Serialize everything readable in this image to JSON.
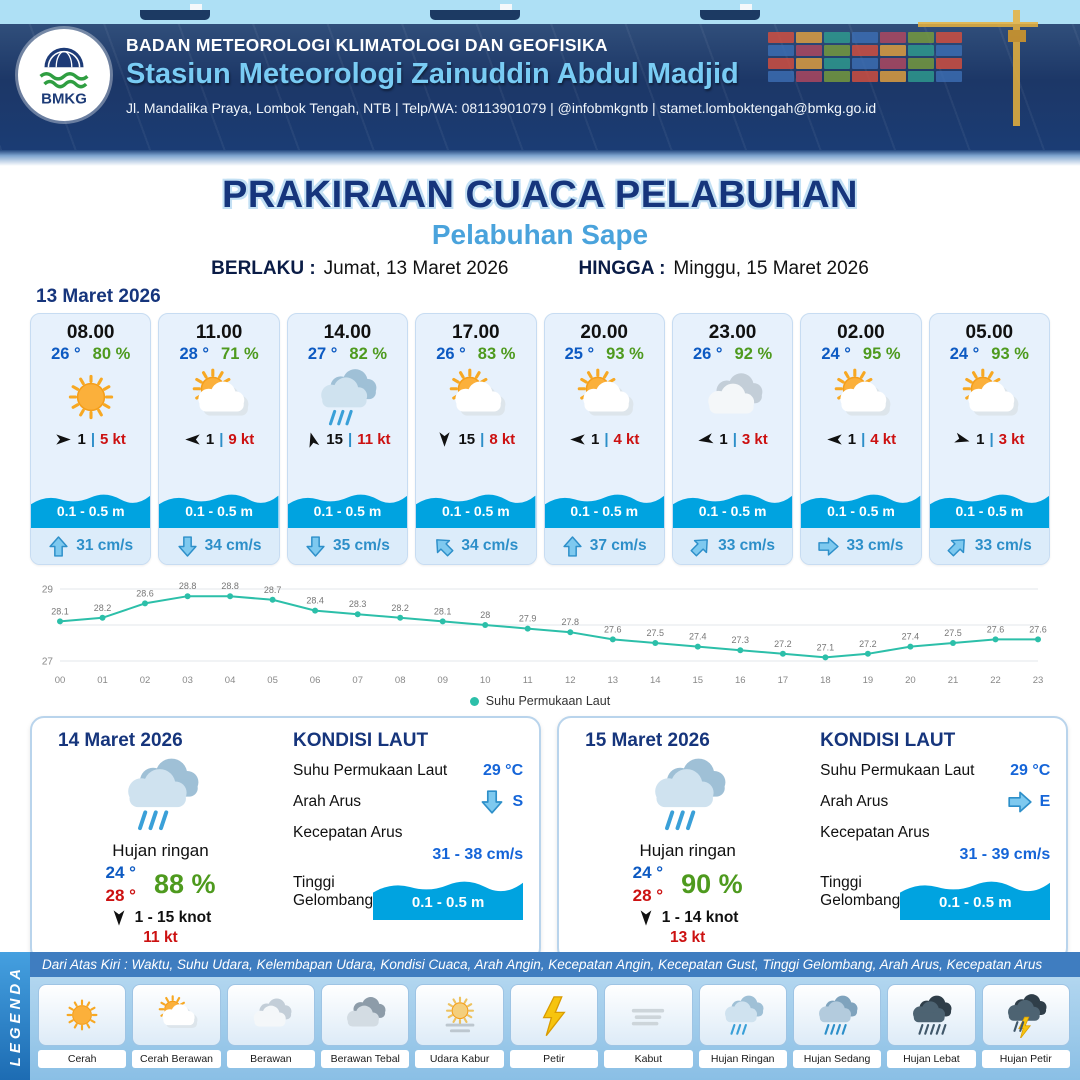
{
  "colors": {
    "navy": "#16357c",
    "light_blue": "#4aa3dc",
    "sky_blue": "#79ccf4",
    "temp_blue": "#0d5ac2",
    "humidity_green": "#4e9a1e",
    "alert_red": "#cc1111",
    "wave_blue": "#00a3e0",
    "current_blue": "#2d8fc9",
    "chart_teal": "#2cbfa9"
  },
  "header": {
    "logo": "BMKG",
    "agency": "BADAN METEOROLOGI KLIMATOLOGI DAN GEOFISIKA",
    "station": "Stasiun Meteorologi Zainuddin Abdul Madjid",
    "contact": "Jl. Mandalika Praya, Lombok Tengah, NTB | Telp/WA: 08113901079 | @infobmkgntb | stamet.lomboktengah@bmkg.go.id"
  },
  "title": {
    "main": "PRAKIRAAN CUACA PELABUHAN",
    "subtitle": "Pelabuhan Sape",
    "valid_label": "BERLAKU :",
    "valid_value": "Jumat, 13 Maret 2026",
    "until_label": "HINGGA :",
    "until_value": "Minggu, 15 Maret 2026"
  },
  "forecast": {
    "date": "13 Maret 2026",
    "wind_separator": "|",
    "cards": [
      {
        "time": "08.00",
        "temp": "26 °",
        "humidity": "80 %",
        "icon": "cerah",
        "wind_rot": 0,
        "wind_val": "1",
        "wind_speed": "5 kt",
        "wave": "0.1 - 0.5 m",
        "current_dir": "up",
        "current": "31 cm/s"
      },
      {
        "time": "11.00",
        "temp": "28 °",
        "humidity": "71 %",
        "icon": "cerah-berawan",
        "wind_rot": 180,
        "wind_val": "1",
        "wind_speed": "9 kt",
        "wave": "0.1 - 0.5 m",
        "current_dir": "down",
        "current": "34 cm/s"
      },
      {
        "time": "14.00",
        "temp": "27 °",
        "humidity": "82 %",
        "icon": "hujan-ringan",
        "wind_rot": -105,
        "wind_val": "15",
        "wind_speed": "11 kt",
        "wave": "0.1 - 0.5 m",
        "current_dir": "down",
        "current": "35 cm/s"
      },
      {
        "time": "17.00",
        "temp": "26 °",
        "humidity": "83 %",
        "icon": "cerah-berawan",
        "wind_rot": 90,
        "wind_val": "15",
        "wind_speed": "8 kt",
        "wave": "0.1 - 0.5 m",
        "current_dir": "up-left",
        "current": "34 cm/s"
      },
      {
        "time": "20.00",
        "temp": "25 °",
        "humidity": "93 %",
        "icon": "cerah-berawan",
        "wind_rot": 180,
        "wind_val": "1",
        "wind_speed": "4 kt",
        "wave": "0.1 - 0.5 m",
        "current_dir": "up",
        "current": "37 cm/s"
      },
      {
        "time": "23.00",
        "temp": "26 °",
        "humidity": "92 %",
        "icon": "berawan",
        "wind_rot": 170,
        "wind_val": "1",
        "wind_speed": "3 kt",
        "wave": "0.1 - 0.5 m",
        "current_dir": "up-right",
        "current": "33 cm/s"
      },
      {
        "time": "02.00",
        "temp": "24 °",
        "humidity": "95 %",
        "icon": "cerah-berawan",
        "wind_rot": 180,
        "wind_val": "1",
        "wind_speed": "4 kt",
        "wave": "0.1 - 0.5 m",
        "current_dir": "right",
        "current": "33 cm/s"
      },
      {
        "time": "05.00",
        "temp": "24 °",
        "humidity": "93 %",
        "icon": "cerah-berawan",
        "wind_rot": 15,
        "wind_val": "1",
        "wind_speed": "3 kt",
        "wave": "0.1 - 0.5 m",
        "current_dir": "up-right",
        "current": "33 cm/s"
      }
    ]
  },
  "chart_data": {
    "type": "line",
    "legend": "Suhu Permukaan Laut",
    "x": [
      "00",
      "01",
      "02",
      "03",
      "04",
      "05",
      "06",
      "07",
      "08",
      "09",
      "10",
      "11",
      "12",
      "13",
      "14",
      "15",
      "16",
      "17",
      "18",
      "19",
      "20",
      "21",
      "22",
      "23"
    ],
    "values": [
      28.1,
      28.2,
      28.6,
      28.8,
      28.8,
      28.7,
      28.4,
      28.3,
      28.2,
      28.1,
      28.0,
      27.9,
      27.8,
      27.6,
      27.5,
      27.4,
      27.3,
      27.2,
      27.1,
      27.2,
      27.4,
      27.5,
      27.6,
      27.6
    ],
    "ylim": [
      27,
      29
    ],
    "yticks": [
      29,
      27
    ],
    "grid": true,
    "legend_position": "bottom",
    "color": "#2cbfa9"
  },
  "day_cards": [
    {
      "date": "14 Maret 2026",
      "icon": "hujan-ringan",
      "condition": "Hujan ringan",
      "temp_min": "24 °",
      "temp_max": "28 °",
      "humidity": "88 %",
      "wind_rot": 90,
      "wind_range": "1 - 15 knot",
      "gust": "11 kt",
      "sea": {
        "title": "KONDISI LAUT",
        "sst_label": "Suhu Permukaan Laut",
        "sst_value": "29 °C",
        "current_dir_label": "Arah Arus",
        "current_dir": "down",
        "current_dir_text": "S",
        "current_speed_label": "Kecepatan Arus",
        "current_speed_value": "31 - 38 cm/s",
        "wave_label": "Tinggi Gelombang",
        "wave_value": "0.1 - 0.5 m"
      }
    },
    {
      "date": "15 Maret 2026",
      "icon": "hujan-ringan",
      "condition": "Hujan ringan",
      "temp_min": "24 °",
      "temp_max": "28 °",
      "humidity": "90 %",
      "wind_rot": 90,
      "wind_range": "1 - 14 knot",
      "gust": "13 kt",
      "sea": {
        "title": "KONDISI LAUT",
        "sst_label": "Suhu Permukaan Laut",
        "sst_value": "29 °C",
        "current_dir_label": "Arah Arus",
        "current_dir": "right",
        "current_dir_text": "E",
        "current_speed_label": "Kecepatan Arus",
        "current_speed_value": "31 - 39 cm/s",
        "wave_label": "Tinggi Gelombang",
        "wave_value": "0.1 - 0.5 m"
      }
    }
  ],
  "legend": {
    "vertical_label": "LEGENDA",
    "description": "Dari Atas Kiri : Waktu, Suhu Udara, Kelembapan Udara, Kondisi Cuaca, Arah Angin, Kecepatan Angin, Kecepatan Gust, Tinggi Gelombang, Arah Arus, Kecepatan Arus",
    "items": [
      {
        "icon": "cerah",
        "label": "Cerah"
      },
      {
        "icon": "cerah-berawan",
        "label": "Cerah Berawan"
      },
      {
        "icon": "berawan",
        "label": "Berawan"
      },
      {
        "icon": "berawan-tebal",
        "label": "Berawan Tebal"
      },
      {
        "icon": "udara-kabur",
        "label": "Udara Kabur"
      },
      {
        "icon": "petir",
        "label": "Petir"
      },
      {
        "icon": "kabut",
        "label": "Kabut"
      },
      {
        "icon": "hujan-ringan",
        "label": "Hujan Ringan"
      },
      {
        "icon": "hujan-sedang",
        "label": "Hujan Sedang"
      },
      {
        "icon": "hujan-lebat",
        "label": "Hujan Lebat"
      },
      {
        "icon": "hujan-petir",
        "label": "Hujan Petir"
      }
    ]
  }
}
